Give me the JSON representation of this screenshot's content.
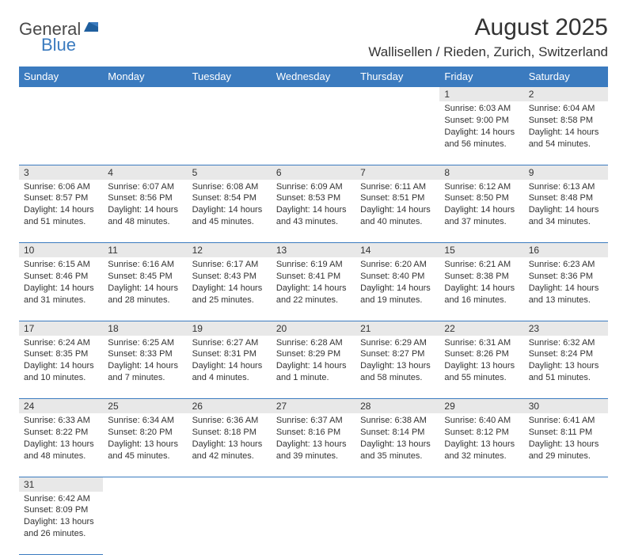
{
  "logo": {
    "part1": "General",
    "part2": "Blue"
  },
  "title": "August 2025",
  "location": "Wallisellen / Rieden, Zurich, Switzerland",
  "colors": {
    "header_bg": "#3b7bbf",
    "daynum_bg": "#e8e8e8",
    "text": "#333333",
    "border": "#3b7bbf"
  },
  "weekdays": [
    "Sunday",
    "Monday",
    "Tuesday",
    "Wednesday",
    "Thursday",
    "Friday",
    "Saturday"
  ],
  "weeks": [
    [
      null,
      null,
      null,
      null,
      null,
      {
        "n": "1",
        "sr": "Sunrise: 6:03 AM",
        "ss": "Sunset: 9:00 PM",
        "dl": "Daylight: 14 hours and 56 minutes."
      },
      {
        "n": "2",
        "sr": "Sunrise: 6:04 AM",
        "ss": "Sunset: 8:58 PM",
        "dl": "Daylight: 14 hours and 54 minutes."
      }
    ],
    [
      {
        "n": "3",
        "sr": "Sunrise: 6:06 AM",
        "ss": "Sunset: 8:57 PM",
        "dl": "Daylight: 14 hours and 51 minutes."
      },
      {
        "n": "4",
        "sr": "Sunrise: 6:07 AM",
        "ss": "Sunset: 8:56 PM",
        "dl": "Daylight: 14 hours and 48 minutes."
      },
      {
        "n": "5",
        "sr": "Sunrise: 6:08 AM",
        "ss": "Sunset: 8:54 PM",
        "dl": "Daylight: 14 hours and 45 minutes."
      },
      {
        "n": "6",
        "sr": "Sunrise: 6:09 AM",
        "ss": "Sunset: 8:53 PM",
        "dl": "Daylight: 14 hours and 43 minutes."
      },
      {
        "n": "7",
        "sr": "Sunrise: 6:11 AM",
        "ss": "Sunset: 8:51 PM",
        "dl": "Daylight: 14 hours and 40 minutes."
      },
      {
        "n": "8",
        "sr": "Sunrise: 6:12 AM",
        "ss": "Sunset: 8:50 PM",
        "dl": "Daylight: 14 hours and 37 minutes."
      },
      {
        "n": "9",
        "sr": "Sunrise: 6:13 AM",
        "ss": "Sunset: 8:48 PM",
        "dl": "Daylight: 14 hours and 34 minutes."
      }
    ],
    [
      {
        "n": "10",
        "sr": "Sunrise: 6:15 AM",
        "ss": "Sunset: 8:46 PM",
        "dl": "Daylight: 14 hours and 31 minutes."
      },
      {
        "n": "11",
        "sr": "Sunrise: 6:16 AM",
        "ss": "Sunset: 8:45 PM",
        "dl": "Daylight: 14 hours and 28 minutes."
      },
      {
        "n": "12",
        "sr": "Sunrise: 6:17 AM",
        "ss": "Sunset: 8:43 PM",
        "dl": "Daylight: 14 hours and 25 minutes."
      },
      {
        "n": "13",
        "sr": "Sunrise: 6:19 AM",
        "ss": "Sunset: 8:41 PM",
        "dl": "Daylight: 14 hours and 22 minutes."
      },
      {
        "n": "14",
        "sr": "Sunrise: 6:20 AM",
        "ss": "Sunset: 8:40 PM",
        "dl": "Daylight: 14 hours and 19 minutes."
      },
      {
        "n": "15",
        "sr": "Sunrise: 6:21 AM",
        "ss": "Sunset: 8:38 PM",
        "dl": "Daylight: 14 hours and 16 minutes."
      },
      {
        "n": "16",
        "sr": "Sunrise: 6:23 AM",
        "ss": "Sunset: 8:36 PM",
        "dl": "Daylight: 14 hours and 13 minutes."
      }
    ],
    [
      {
        "n": "17",
        "sr": "Sunrise: 6:24 AM",
        "ss": "Sunset: 8:35 PM",
        "dl": "Daylight: 14 hours and 10 minutes."
      },
      {
        "n": "18",
        "sr": "Sunrise: 6:25 AM",
        "ss": "Sunset: 8:33 PM",
        "dl": "Daylight: 14 hours and 7 minutes."
      },
      {
        "n": "19",
        "sr": "Sunrise: 6:27 AM",
        "ss": "Sunset: 8:31 PM",
        "dl": "Daylight: 14 hours and 4 minutes."
      },
      {
        "n": "20",
        "sr": "Sunrise: 6:28 AM",
        "ss": "Sunset: 8:29 PM",
        "dl": "Daylight: 14 hours and 1 minute."
      },
      {
        "n": "21",
        "sr": "Sunrise: 6:29 AM",
        "ss": "Sunset: 8:27 PM",
        "dl": "Daylight: 13 hours and 58 minutes."
      },
      {
        "n": "22",
        "sr": "Sunrise: 6:31 AM",
        "ss": "Sunset: 8:26 PM",
        "dl": "Daylight: 13 hours and 55 minutes."
      },
      {
        "n": "23",
        "sr": "Sunrise: 6:32 AM",
        "ss": "Sunset: 8:24 PM",
        "dl": "Daylight: 13 hours and 51 minutes."
      }
    ],
    [
      {
        "n": "24",
        "sr": "Sunrise: 6:33 AM",
        "ss": "Sunset: 8:22 PM",
        "dl": "Daylight: 13 hours and 48 minutes."
      },
      {
        "n": "25",
        "sr": "Sunrise: 6:34 AM",
        "ss": "Sunset: 8:20 PM",
        "dl": "Daylight: 13 hours and 45 minutes."
      },
      {
        "n": "26",
        "sr": "Sunrise: 6:36 AM",
        "ss": "Sunset: 8:18 PM",
        "dl": "Daylight: 13 hours and 42 minutes."
      },
      {
        "n": "27",
        "sr": "Sunrise: 6:37 AM",
        "ss": "Sunset: 8:16 PM",
        "dl": "Daylight: 13 hours and 39 minutes."
      },
      {
        "n": "28",
        "sr": "Sunrise: 6:38 AM",
        "ss": "Sunset: 8:14 PM",
        "dl": "Daylight: 13 hours and 35 minutes."
      },
      {
        "n": "29",
        "sr": "Sunrise: 6:40 AM",
        "ss": "Sunset: 8:12 PM",
        "dl": "Daylight: 13 hours and 32 minutes."
      },
      {
        "n": "30",
        "sr": "Sunrise: 6:41 AM",
        "ss": "Sunset: 8:11 PM",
        "dl": "Daylight: 13 hours and 29 minutes."
      }
    ],
    [
      {
        "n": "31",
        "sr": "Sunrise: 6:42 AM",
        "ss": "Sunset: 8:09 PM",
        "dl": "Daylight: 13 hours and 26 minutes."
      },
      null,
      null,
      null,
      null,
      null,
      null
    ]
  ]
}
